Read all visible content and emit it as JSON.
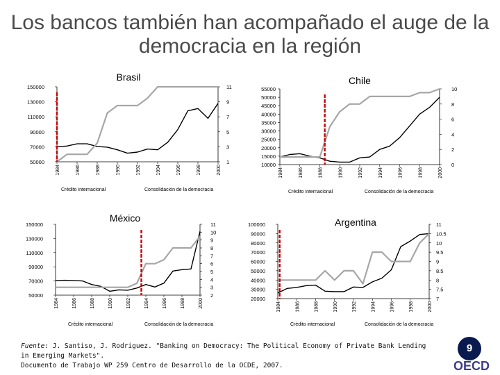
{
  "title": "Los bancos también han acompañado el auge de la\ndemocracia en la región",
  "footer": {
    "fuente_label": "Fuente:",
    "fuente_text": " J. Santiso, J. Rodriguez. \"Banking on Democracy: The Political Economy of Private Bank Lending in Emerging Markets\".",
    "line2": "Documento de  Trabajo WP 259 Centro de Desarrollo de la OCDE, 2007."
  },
  "page_number": "9",
  "logo_text": "OECD",
  "colors": {
    "credit_line": "#000000",
    "democracy_line": "#a6a6a6",
    "marker_line": "#cc0000",
    "badge": "#0a1a4f"
  },
  "chart_data": [
    {
      "name": "brasil",
      "type": "line",
      "title": "Brasil",
      "ticks_x": [
        "1984",
        "1986",
        "1988",
        "1990",
        "1992",
        "1994",
        "1996",
        "1998",
        "2000"
      ],
      "x": [
        1984,
        1985,
        1986,
        1987,
        1988,
        1989,
        1990,
        1991,
        1992,
        1993,
        1994,
        1995,
        1996,
        1997,
        1998,
        1999,
        2000
      ],
      "left_ticks": [
        "150000",
        "130000",
        "110000",
        "90000",
        "70000",
        "50000"
      ],
      "right_ticks": [
        "11",
        "9",
        "7",
        "5",
        "3",
        "1"
      ],
      "left_range": [
        50000,
        150000
      ],
      "right_range": [
        1,
        11
      ],
      "marker_x": 1984,
      "series": [
        {
          "name": "Crédito internacional",
          "axis": "left",
          "values": [
            70000,
            71000,
            74000,
            74000,
            70500,
            69500,
            66000,
            61500,
            63000,
            67000,
            66000,
            76000,
            93000,
            118000,
            121000,
            108000,
            128000
          ]
        },
        {
          "name": "Consolidación de la democracia",
          "axis": "right",
          "values": [
            1,
            2,
            2,
            2,
            3.5,
            7.5,
            8.5,
            8.5,
            8.5,
            9.5,
            11,
            11,
            11,
            11,
            11,
            11,
            11
          ]
        }
      ],
      "legend": [
        "Crédito internacional",
        "Consolidación de la democracia"
      ]
    },
    {
      "name": "chile",
      "type": "line",
      "title": "Chile",
      "ticks_x": [
        "1984",
        "1986",
        "1988",
        "1990",
        "1992",
        "1994",
        "1996",
        "1998",
        "2000"
      ],
      "x": [
        1984,
        1985,
        1986,
        1987,
        1988,
        1989,
        1990,
        1991,
        1992,
        1993,
        1994,
        1995,
        1996,
        1997,
        1998,
        1999,
        2000
      ],
      "left_ticks": [
        "55000",
        "50000",
        "45000",
        "40000",
        "35000",
        "30000",
        "25000",
        "20000",
        "15000",
        "10000"
      ],
      "right_ticks": [
        "10",
        "8",
        "6",
        "4",
        "2",
        "0"
      ],
      "left_range": [
        10000,
        55000
      ],
      "right_range": [
        0,
        10
      ],
      "marker_x": 1988.5,
      "series": [
        {
          "name": "Crédito internacional",
          "axis": "left",
          "values": [
            14500,
            16000,
            16500,
            15000,
            14000,
            12000,
            11500,
            11500,
            14000,
            14500,
            19000,
            21000,
            26000,
            33000,
            40000,
            44000,
            50000
          ]
        },
        {
          "name": "Consolidación de la democracia",
          "axis": "right",
          "values": [
            1,
            1,
            1,
            1,
            1,
            5,
            7,
            8,
            8,
            9,
            9,
            9,
            9,
            9,
            9.5,
            9.5,
            10
          ]
        }
      ],
      "legend": [
        "Crédito internacional",
        "Consolidación de la democracia"
      ]
    },
    {
      "name": "mexico",
      "type": "line",
      "title": "México",
      "ticks_x": [
        "1984",
        "1986",
        "1988",
        "1990",
        "1992",
        "1994",
        "1996",
        "1998",
        "2000"
      ],
      "x": [
        1984,
        1985,
        1986,
        1987,
        1988,
        1989,
        1990,
        1991,
        1992,
        1993,
        1994,
        1995,
        1996,
        1997,
        1998,
        1999,
        2000
      ],
      "left_ticks": [
        "150000",
        "130000",
        "110000",
        "90000",
        "70000",
        "50000"
      ],
      "right_ticks": [
        "11",
        "10",
        "9",
        "8",
        "7",
        "6",
        "5",
        "4",
        "3",
        "2"
      ],
      "left_range": [
        50000,
        150000
      ],
      "right_range": [
        2,
        11
      ],
      "marker_x": 1993.5,
      "series": [
        {
          "name": "Crédito internacional",
          "axis": "left",
          "values": [
            70500,
            71000,
            70500,
            70000,
            65000,
            62500,
            55500,
            57500,
            57000,
            60000,
            65000,
            61500,
            67000,
            84000,
            86000,
            87000,
            140000
          ]
        },
        {
          "name": "Consolidación de la democracia",
          "axis": "right",
          "values": [
            3,
            3,
            3,
            3,
            3,
            3,
            3,
            3,
            3,
            3.5,
            6,
            6,
            6.5,
            8,
            8,
            8,
            9.5
          ]
        }
      ],
      "legend": [
        "Crédito internacional",
        "Consolidación de la democracia"
      ]
    },
    {
      "name": "argentina",
      "type": "line",
      "title": "Argentina",
      "ticks_x": [
        "1984",
        "1986",
        "1988",
        "1990",
        "1992",
        "1994",
        "1996",
        "1998",
        "2000"
      ],
      "x": [
        1984,
        1985,
        1986,
        1987,
        1988,
        1989,
        1990,
        1991,
        1992,
        1993,
        1994,
        1995,
        1996,
        1997,
        1998,
        1999,
        2000
      ],
      "left_ticks": [
        "100000",
        "90000",
        "80000",
        "70000",
        "60000",
        "50000",
        "40000",
        "30000",
        "20000"
      ],
      "right_ticks": [
        "11",
        "10.5",
        "10",
        "9.5",
        "9",
        "8.5",
        "8",
        "7.5",
        "7"
      ],
      "left_range": [
        20000,
        100000
      ],
      "right_range": [
        7,
        11
      ],
      "marker_x": 1984.2,
      "series": [
        {
          "name": "Crédito internacional",
          "axis": "left",
          "values": [
            26000,
            31000,
            32000,
            34000,
            34500,
            28000,
            27500,
            27500,
            32500,
            32000,
            38000,
            42000,
            51000,
            76000,
            82000,
            89000,
            90000
          ]
        },
        {
          "name": "Consolidación de la democracia",
          "axis": "right",
          "values": [
            8,
            8,
            8,
            8,
            8,
            8.5,
            8,
            8.5,
            8.5,
            7.8,
            9.5,
            9.5,
            9,
            9,
            9,
            10,
            10.5
          ]
        }
      ],
      "legend": [
        "Crédito internacional",
        "Consolidación de la democracia"
      ]
    }
  ]
}
